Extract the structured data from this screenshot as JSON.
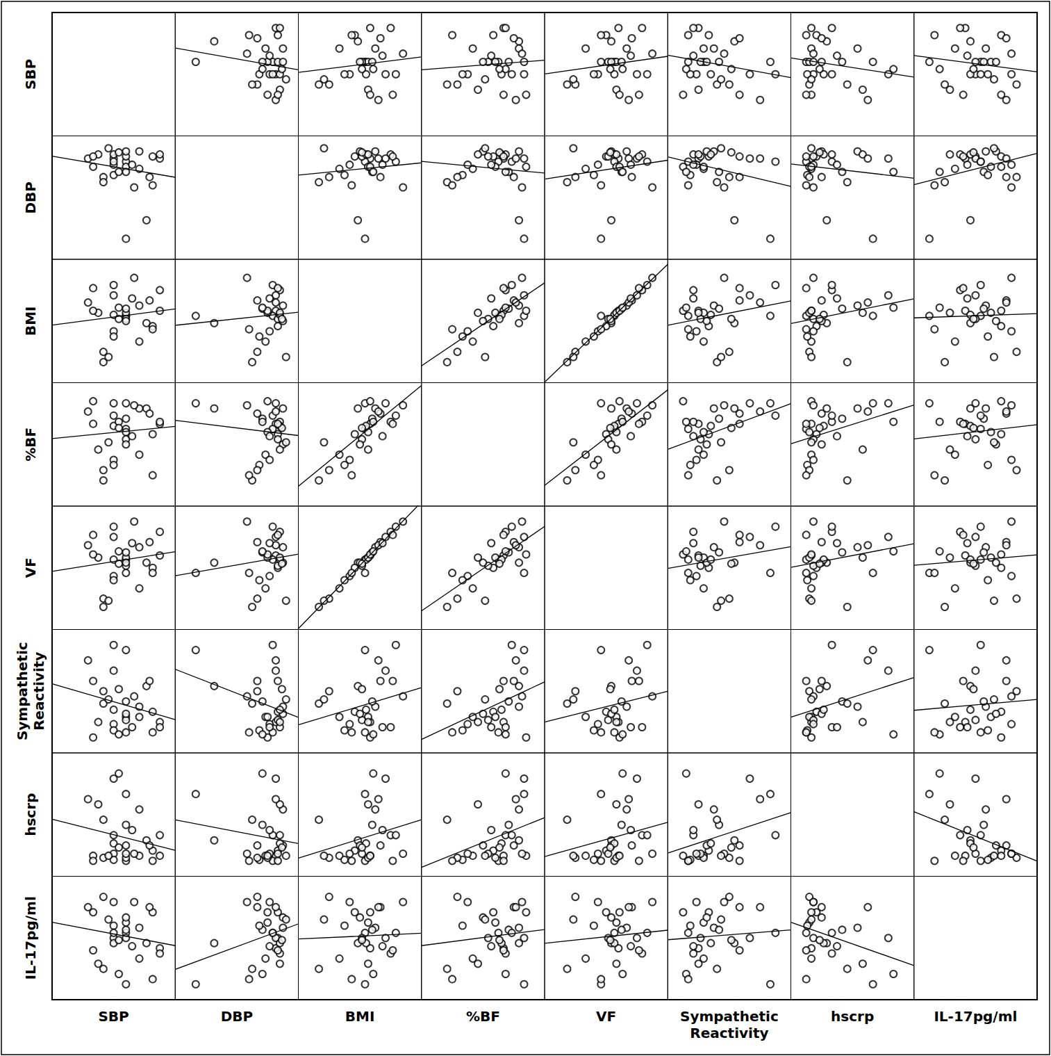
{
  "chart_data": {
    "type": "scatter_matrix",
    "tick_labels": false,
    "grid": false,
    "marker": "circle-open",
    "color": "#000000",
    "variables": [
      {
        "name": "SBP",
        "lim": [
          -10,
          110
        ],
        "values": [
          62,
          82,
          95,
          95,
          88,
          85,
          75,
          75,
          62,
          62,
          62,
          62,
          62,
          50,
          50,
          50,
          50,
          50,
          40,
          35,
          30,
          25,
          40,
          70,
          55,
          45,
          68,
          88,
          55,
          30
        ]
      },
      {
        "name": "DBP",
        "lim": [
          -10,
          110
        ],
        "values": [
          10,
          28,
          88,
          92,
          90,
          70,
          95,
          78,
          85,
          80,
          90,
          75,
          95,
          82,
          88,
          72,
          92,
          85,
          70,
          92,
          80,
          88,
          65,
          60,
          75,
          98,
          82,
          62,
          94,
          90
        ]
      },
      {
        "name": "BMI",
        "lim": [
          -10,
          110
        ],
        "values": [
          55,
          48,
          60,
          80,
          45,
          70,
          65,
          30,
          55,
          58,
          52,
          62,
          50,
          40,
          75,
          35,
          56,
          85,
          20,
          58,
          60,
          68,
          10,
          92,
          63,
          15,
          72,
          42,
          52,
          82
        ]
      },
      {
        "name": "%BF",
        "lim": [
          -10,
          110
        ],
        "values": [
          90,
          85,
          70,
          72,
          60,
          80,
          85,
          40,
          65,
          62,
          55,
          75,
          50,
          35,
          90,
          30,
          68,
          78,
          25,
          45,
          92,
          82,
          15,
          88,
          72,
          52,
          58,
          20,
          66,
          70
        ]
      },
      {
        "name": "VF",
        "lim": [
          -10,
          110
        ],
        "values": [
          45,
          55,
          62,
          85,
          50,
          75,
          70,
          30,
          58,
          60,
          52,
          65,
          55,
          42,
          80,
          38,
          58,
          90,
          20,
          60,
          63,
          72,
          12,
          95,
          66,
          18,
          74,
          45,
          54,
          82
        ]
      },
      {
        "name": "Sympathetic Reactivity",
        "lim": [
          -10,
          110
        ],
        "values": [
          90,
          55,
          20,
          15,
          30,
          60,
          35,
          25,
          10,
          25,
          22,
          40,
          28,
          18,
          70,
          12,
          32,
          95,
          50,
          20,
          5,
          80,
          38,
          45,
          8,
          42,
          15,
          10,
          52,
          60
        ]
      },
      {
        "name": "hscrp",
        "lim": [
          -10,
          110
        ],
        "values": [
          70,
          25,
          10,
          30,
          15,
          20,
          55,
          10,
          5,
          8,
          12,
          40,
          20,
          12,
          85,
          6,
          22,
          30,
          8,
          60,
          10,
          65,
          45,
          12,
          90,
          10,
          35,
          5,
          18,
          5
        ]
      },
      {
        "name": "IL-17pg/ml",
        "lim": [
          -10,
          110
        ],
        "values": [
          5,
          45,
          40,
          35,
          75,
          80,
          60,
          30,
          55,
          65,
          50,
          58,
          70,
          85,
          50,
          62,
          45,
          55,
          90,
          25,
          75,
          80,
          20,
          85,
          15,
          68,
          42,
          10,
          48,
          38
        ]
      }
    ]
  }
}
